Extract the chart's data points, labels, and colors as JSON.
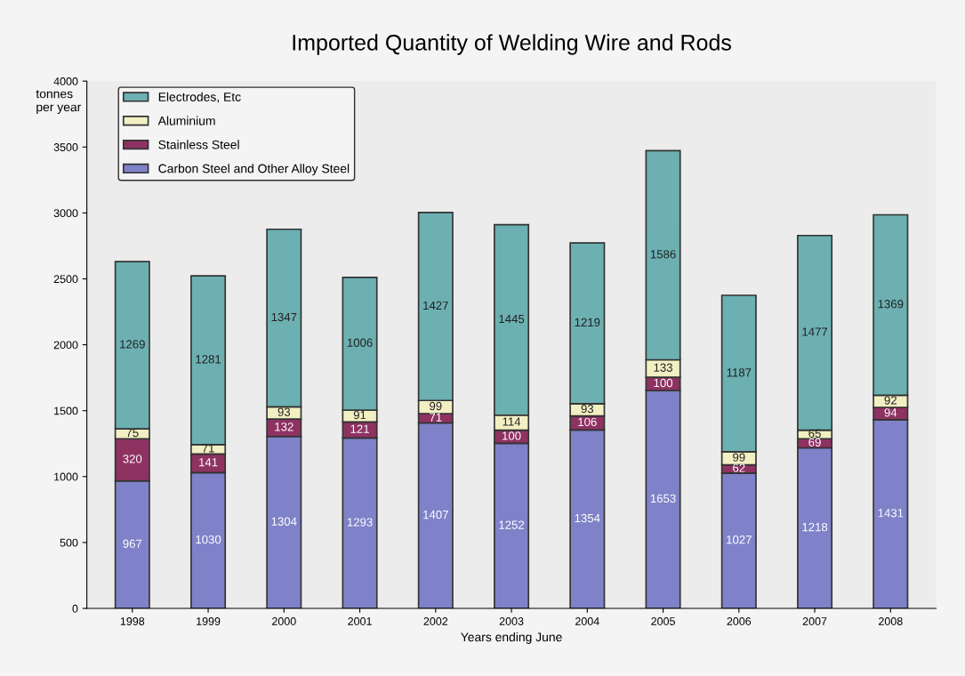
{
  "chart_data": {
    "type": "bar",
    "title": "Imported Quantity of Welding Wire and Rods",
    "xlabel": "Years ending June",
    "ylabel": "tonnes\nper year",
    "categories": [
      "1998",
      "1999",
      "2000",
      "2001",
      "2002",
      "2003",
      "2004",
      "2005",
      "2006",
      "2007",
      "2008"
    ],
    "stacked": true,
    "data_labels": true,
    "legend": "top left",
    "grid": false,
    "ylim": [
      0,
      4000
    ],
    "yticks": [
      0,
      500,
      1000,
      1500,
      2000,
      2500,
      3000,
      3500,
      4000
    ],
    "series": [
      {
        "name": "Carbon Steel and Other Alloy Steel",
        "color": "#7f82c8",
        "values": [
          967,
          1030,
          1304,
          1293,
          1407,
          1252,
          1354,
          1653,
          1027,
          1218,
          1431
        ]
      },
      {
        "name": "Stainless Steel",
        "color": "#8e3262",
        "values": [
          320,
          141,
          132,
          121,
          71,
          100,
          106,
          100,
          62,
          69,
          94
        ]
      },
      {
        "name": "Aluminium",
        "color": "#f2efc2",
        "values": [
          75,
          71,
          93,
          91,
          99,
          114,
          93,
          133,
          99,
          65,
          92
        ]
      },
      {
        "name": "Electrodes, Etc",
        "color": "#6cb0b2",
        "values": [
          1269,
          1281,
          1347,
          1006,
          1427,
          1445,
          1219,
          1586,
          1187,
          1477,
          1369
        ]
      }
    ]
  }
}
